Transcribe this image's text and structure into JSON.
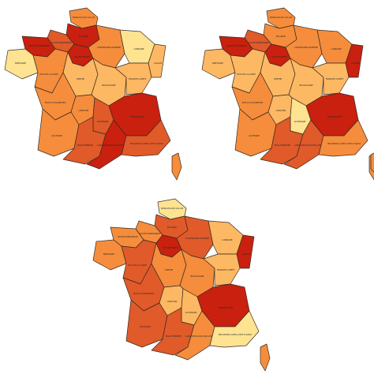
{
  "colors": {
    "c0": "#fee391",
    "c1": "#fdb863",
    "c2": "#f58d3c",
    "c3": "#e05a2a",
    "c4": "#c9200f"
  },
  "region_names": {
    "NPC": "NORD-PAS-DE-CALAIS",
    "PIC": "PICARDIE",
    "HN": "HAUTE-NORMANDIE",
    "BN": "BASSE-NORMANDIE",
    "IDF": "ILE-DE-FRANCE",
    "CHA": "CHAMPAGNE-ARDENNE",
    "LOR": "LORRAINE",
    "ALS": "ALSACE",
    "BRE": "BRETAGNE",
    "PDL": "PAYS-DE-LA-LOIRE",
    "CEN": "CENTRE",
    "BOU": "BOURGOGNE",
    "FC": "FRANCHE-COMTE",
    "PC": "POITOU-CHARENTES",
    "LIM": "LIMOUSIN",
    "AUV": "AUVERGNE",
    "RA": "RHONE-ALPES",
    "AQU": "AQUITAINE",
    "MP": "MIDI-PYRENEES",
    "LR": "LANGUEDOC-ROUSSILLON",
    "PACA": "PROVENCE-ALPES-COTE-D'AZUR",
    "COR": "CORSE"
  },
  "maps": [
    {
      "fills": {
        "NPC": "c2",
        "PIC": "c4",
        "HN": "c3",
        "BN": "c4",
        "IDF": "c4",
        "CHA": "c2",
        "LOR": "c0",
        "ALS": "c1",
        "BRE": "c0",
        "PDL": "c2",
        "CEN": "c1",
        "BOU": "c1",
        "FC": "c1",
        "PC": "c2",
        "LIM": "c2",
        "AUV": "c3",
        "RA": "c4",
        "AQU": "c2",
        "MP": "c3",
        "LR": "c4",
        "PACA": "c3",
        "COR": "c2"
      }
    },
    {
      "fills": {
        "NPC": "c2",
        "PIC": "c2",
        "HN": "c3",
        "BN": "c4",
        "IDF": "c4",
        "CHA": "c2",
        "LOR": "c2",
        "ALS": "c4",
        "BRE": "c1",
        "PDL": "c1",
        "CEN": "c1",
        "BOU": "c1",
        "FC": "c1",
        "PC": "c2",
        "LIM": "c1",
        "AUV": "c0",
        "RA": "c4",
        "AQU": "c2",
        "MP": "c3",
        "LR": "c3",
        "PACA": "c2",
        "COR": "c2"
      }
    },
    {
      "fills": {
        "NPC": "c0",
        "PIC": "c3",
        "HN": "c2",
        "BN": "c2",
        "IDF": "c4",
        "CHA": "c3",
        "LOR": "c1",
        "ALS": "c4",
        "BRE": "c2",
        "PDL": "c3",
        "CEN": "c2",
        "BOU": "c2",
        "FC": "c1",
        "PC": "c3",
        "LIM": "c1",
        "AUV": "c1",
        "RA": "c4",
        "AQU": "c3",
        "MP": "c3",
        "LR": "c2",
        "PACA": "c0",
        "COR": "c2"
      }
    }
  ]
}
